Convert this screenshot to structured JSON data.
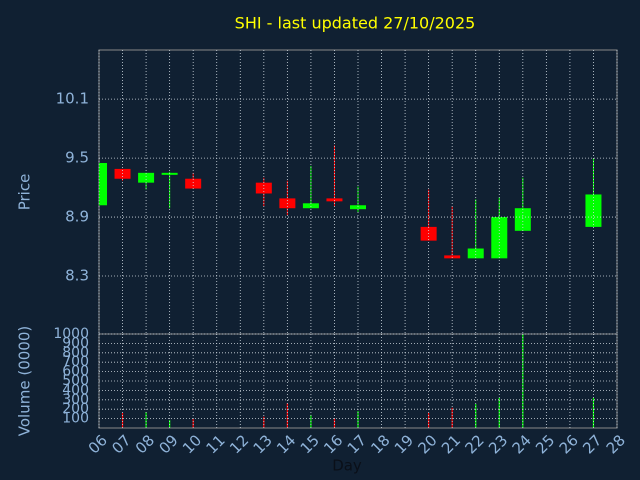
{
  "chart_data": [
    {
      "type": "candlestick",
      "title": "SHI - last updated 27/10/2025",
      "y_label": "Price",
      "x": [
        6,
        7,
        8,
        9,
        10,
        13,
        14,
        15,
        16,
        17,
        20,
        21,
        22,
        23,
        24,
        27
      ],
      "open": [
        9.02,
        9.39,
        9.25,
        9.33,
        9.29,
        9.25,
        9.09,
        8.99,
        9.09,
        8.98,
        8.8,
        8.51,
        8.48,
        8.48,
        8.76,
        8.8
      ],
      "high": [
        9.45,
        9.39,
        9.35,
        9.36,
        9.35,
        9.3,
        9.27,
        9.42,
        9.63,
        9.21,
        9.18,
        9.01,
        9.08,
        9.1,
        9.3,
        9.5
      ],
      "low": [
        9.02,
        9.27,
        9.18,
        8.99,
        9.19,
        9.01,
        8.92,
        8.99,
        9.01,
        8.95,
        8.66,
        8.48,
        8.48,
        8.48,
        8.76,
        8.8
      ],
      "close": [
        9.45,
        9.29,
        9.35,
        9.35,
        9.19,
        9.14,
        8.99,
        9.04,
        9.06,
        9.02,
        8.66,
        8.48,
        8.58,
        8.9,
        8.99,
        9.13
      ],
      "up_color": "#00ff00",
      "down_color": "#ff0000",
      "xlim": [
        6,
        28
      ],
      "ylim": [
        7.71,
        10.6
      ],
      "yticks": [
        8.3,
        8.9,
        9.5,
        10.1
      ],
      "grid": true
    },
    {
      "type": "bar",
      "y_label": "Volume (0000)",
      "x_label": "Day",
      "x": [
        6,
        7,
        8,
        9,
        10,
        13,
        14,
        15,
        16,
        17,
        20,
        21,
        22,
        23,
        24,
        27
      ],
      "values": [
        0,
        160,
        170,
        85,
        95,
        120,
        265,
        140,
        105,
        180,
        160,
        215,
        255,
        320,
        1000,
        320
      ],
      "xlim": [
        6,
        28
      ],
      "ylim": [
        0,
        1000
      ],
      "yticks": [
        100,
        200,
        300,
        400,
        500,
        600,
        700,
        800,
        900,
        1000
      ],
      "xticks": [
        {
          "value": 6,
          "label": "06"
        },
        {
          "value": 7,
          "label": "07"
        },
        {
          "value": 8,
          "label": "08"
        },
        {
          "value": 9,
          "label": "09"
        },
        10,
        11,
        12,
        13,
        14,
        15,
        16,
        17,
        18,
        19,
        20,
        21,
        22,
        23,
        24,
        25,
        26,
        27,
        28
      ],
      "grid": true
    }
  ]
}
